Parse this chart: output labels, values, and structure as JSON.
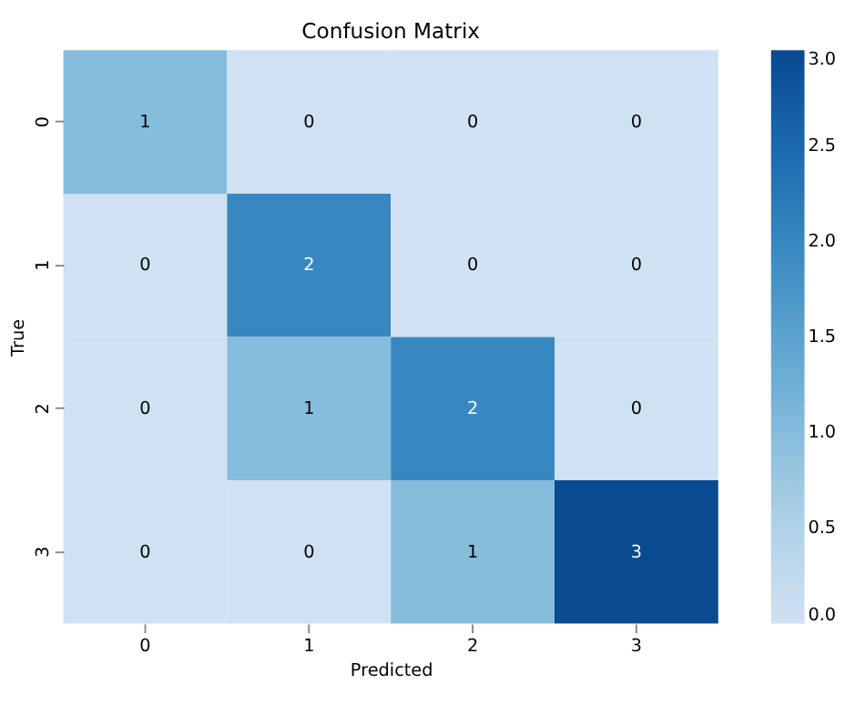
{
  "chart_data": {
    "type": "heatmap",
    "title": "Confusion Matrix",
    "xlabel": "Predicted",
    "ylabel": "True",
    "categories": [
      "0",
      "1",
      "2",
      "3"
    ],
    "y_categories": [
      "0",
      "1",
      "2",
      "3"
    ],
    "cells": [
      [
        1,
        0,
        0,
        0
      ],
      [
        0,
        2,
        0,
        0
      ],
      [
        0,
        1,
        2,
        0
      ],
      [
        0,
        0,
        1,
        3
      ]
    ],
    "data_labels": true,
    "clim": [
      0,
      3
    ],
    "cticks": [
      {
        "value": 0,
        "label": "0.0"
      },
      {
        "value": 0.5,
        "label": "0.5"
      },
      {
        "value": 1,
        "label": "1.0"
      },
      {
        "value": 1.5,
        "label": "1.5"
      },
      {
        "value": 2,
        "label": "2.0"
      },
      {
        "value": 2.5,
        "label": "2.5"
      },
      {
        "value": 3,
        "label": "3.0"
      }
    ]
  }
}
